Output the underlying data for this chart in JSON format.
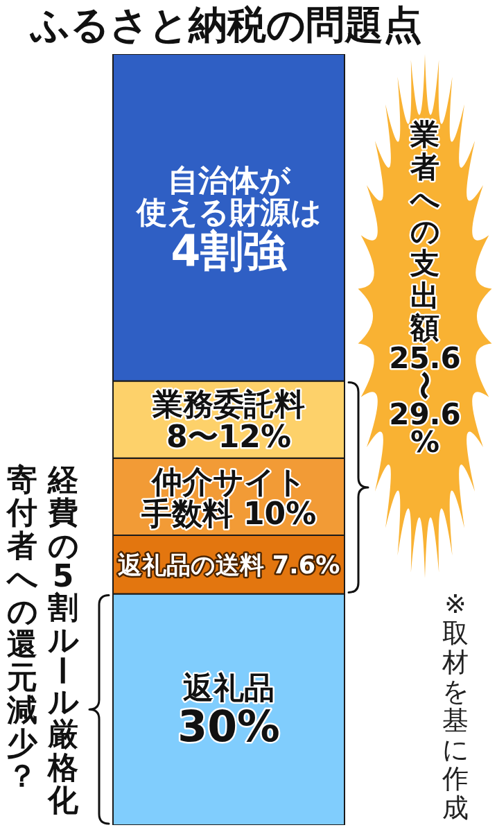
{
  "chart_data": {
    "type": "bar",
    "title": "ふるさと納税の問題点",
    "categories": [
      null
    ],
    "stacked": true,
    "tick_labels": false,
    "series": [
      {
        "name": "返礼品",
        "color": "#80cdfd",
        "values": [
          30
        ],
        "value_labels": [
          "30%"
        ]
      },
      {
        "name": "返礼品の送料",
        "color": "#e3760f",
        "values": [
          7.6
        ],
        "value_labels": [
          "7.6%"
        ]
      },
      {
        "name": "仲介サイト手数料",
        "color": "#f29b36",
        "values": [
          10
        ],
        "value_labels": [
          "10%"
        ]
      },
      {
        "name": "業務委託料8〜12%",
        "color": "#fdd16a",
        "values": [
          10
        ]
      },
      {
        "name": "自治体が使える財源は4割強",
        "color": "#2f5fc4",
        "values": [
          42.4
        ]
      }
    ],
    "annotations": [
      "業者への支出額25.6〜29.6%",
      "経費の5割ルール厳格化",
      "寄付者への還元減少？",
      "※取材を基に作成"
    ]
  }
}
